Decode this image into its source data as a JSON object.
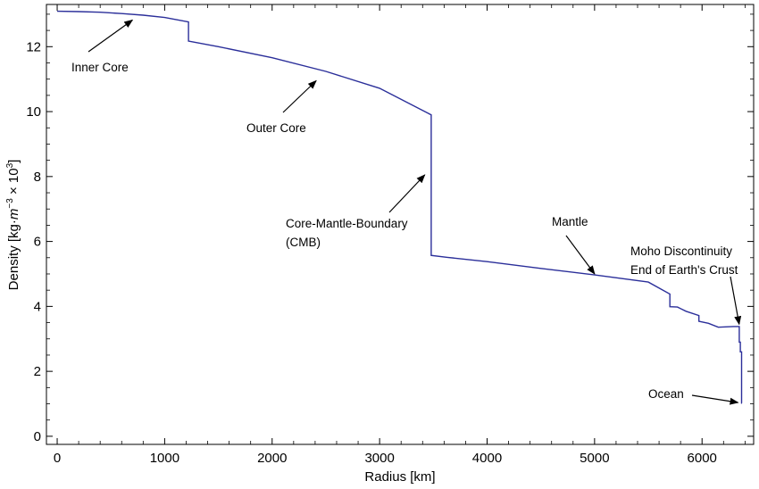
{
  "chart_data": {
    "type": "line",
    "xlabel": "Radius [km]",
    "ylabel": {
      "prefix": "Density [kg·",
      "m": "m",
      "exp_neg3": "−3",
      "times": " × 10",
      "exp_3": "3",
      "suffix": "]"
    },
    "xlim": [
      -100,
      6480
    ],
    "ylim": [
      -0.25,
      13.3
    ],
    "xticks": [
      0,
      1000,
      2000,
      3000,
      4000,
      5000,
      6000
    ],
    "yticks": [
      0,
      2,
      4,
      6,
      8,
      10,
      12
    ],
    "grid": false,
    "line_color": "#2b2f9a",
    "series": [
      {
        "x": [
          0,
          200,
          400,
          600,
          800,
          1000,
          1221.5,
          1221.5,
          1500,
          2000,
          2500,
          3000,
          3480,
          3480,
          3630,
          4000,
          4500,
          5000,
          5500,
          5701,
          5701,
          5771,
          5771,
          5850,
          5971,
          5971,
          6060,
          6151,
          6151,
          6220,
          6291,
          6346.6,
          6346.6,
          6356,
          6356,
          6368,
          6368,
          6371
        ],
        "y": [
          13.09,
          13.08,
          13.06,
          13.02,
          12.97,
          12.9,
          12.76,
          12.17,
          12.0,
          11.66,
          11.24,
          10.72,
          9.9,
          5.57,
          5.51,
          5.38,
          5.17,
          4.97,
          4.75,
          4.38,
          3.99,
          3.98,
          3.98,
          3.85,
          3.72,
          3.54,
          3.48,
          3.36,
          3.36,
          3.37,
          3.38,
          3.38,
          2.9,
          2.9,
          2.6,
          2.6,
          1.02,
          1.02
        ]
      }
    ],
    "annotations": [
      {
        "id": "inner-core",
        "lines": [
          "Inner Core"
        ],
        "arrow_to": [
          700,
          12.82
        ]
      },
      {
        "id": "outer-core",
        "lines": [
          "Outer Core"
        ],
        "arrow_to": [
          2410,
          10.95
        ]
      },
      {
        "id": "cmb",
        "lines": [
          "Core-Mantle-Boundary",
          "(CMB)"
        ],
        "arrow_to": [
          3420,
          8.05
        ]
      },
      {
        "id": "mantle",
        "lines": [
          "Mantle"
        ],
        "arrow_to": [
          5000,
          5.0
        ]
      },
      {
        "id": "moho",
        "lines": [
          "Moho Discontinuity",
          "End of Earth's Crust"
        ],
        "arrow_to": [
          6345,
          3.45
        ]
      },
      {
        "id": "ocean",
        "lines": [
          "Ocean"
        ],
        "arrow_to": [
          6335,
          1.04
        ]
      }
    ]
  }
}
